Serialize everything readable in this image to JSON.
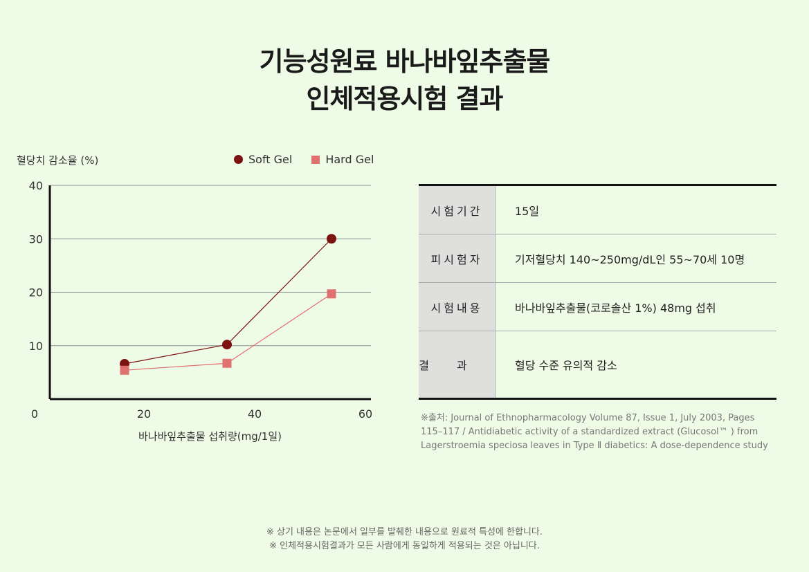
{
  "title": {
    "line1": "기능성원료 바나바잎추출물",
    "line2": "인체적용시험 결과"
  },
  "chart_data": {
    "type": "line",
    "ylabel": "혈당치 감소율 (%)",
    "xlabel": "바나바잎추출물 섭취량(mg/1일)",
    "xlim": [
      0,
      60
    ],
    "ylim": [
      0,
      40
    ],
    "x_ticks": [
      "0",
      "20",
      "40",
      "60"
    ],
    "y_ticks": [
      "10",
      "20",
      "30",
      "40"
    ],
    "grid": true,
    "legend_position": "top-right",
    "series": [
      {
        "name": "Soft Gel",
        "color": "#7d1212",
        "marker": "circle",
        "x": [
          16,
          32,
          48
        ],
        "y": [
          6.6,
          10.2,
          30
        ]
      },
      {
        "name": "Hard Gel",
        "color": "#e07171",
        "marker": "square",
        "x": [
          16,
          32,
          48
        ],
        "y": [
          5.4,
          6.7,
          19.7
        ]
      }
    ]
  },
  "info_table": {
    "rows": [
      {
        "key": "시험기간",
        "value": "15일"
      },
      {
        "key": "피시험자",
        "value": "기저혈당치 140~250mg/dL인 55~70세 10명"
      },
      {
        "key": "시험내용",
        "value": "바나바잎추출물(코로솔산 1%) 48mg 섭취"
      },
      {
        "key": "결과",
        "value": "혈당 수준 유의적 감소"
      }
    ]
  },
  "source": {
    "line1": "※출처: Journal of Ethnopharmacology Volume 87, Issue 1, July 2003, Pages",
    "line2": "115–117 / Antidiabetic activity of a standardized extract (Glucosol™ ) from",
    "line3": "Lagerstroemia speciosa leaves in Type Ⅱ diabetics: A dose-dependence study"
  },
  "footnotes": {
    "line1": "※ 상기 내용은 논문에서 일부를 발췌한 내용으로 원료적 특성에 한합니다.",
    "line2": "※ 인체적용시험결과가 모든 사람에게 동일하게 적용되는 것은 아닙니다."
  }
}
